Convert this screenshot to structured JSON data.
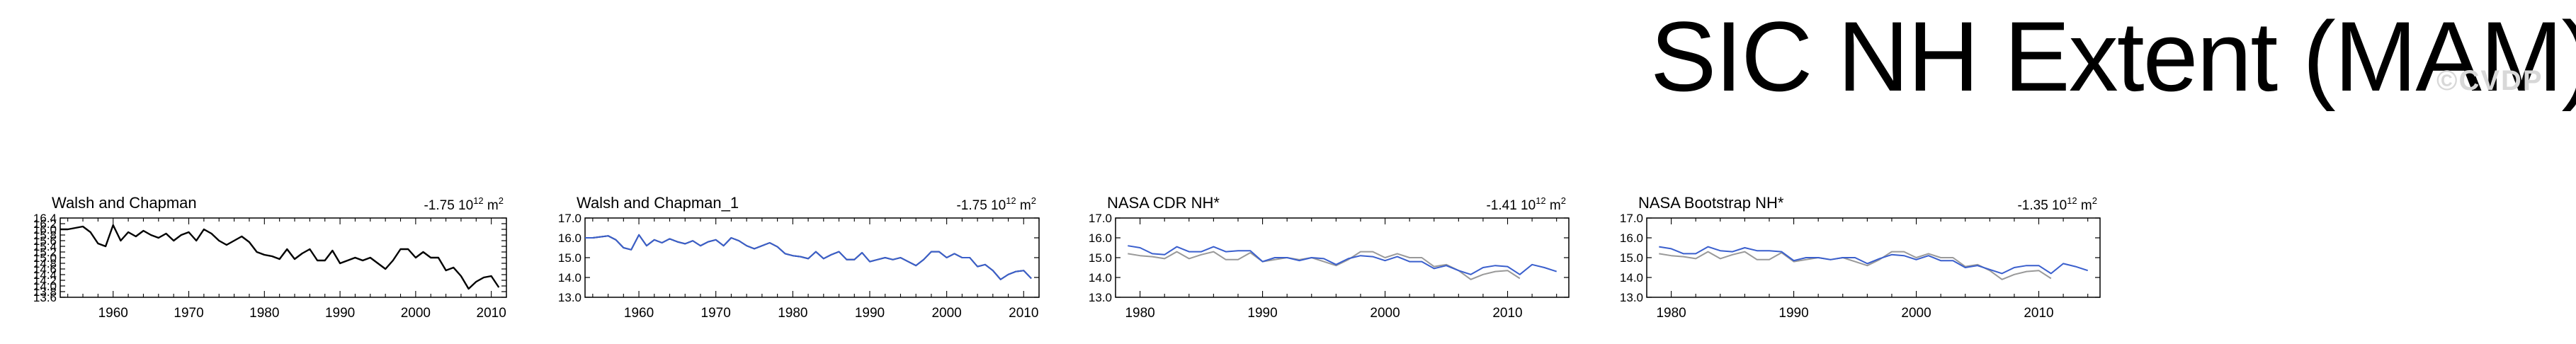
{
  "title": "SIC NH Extent (MAM)",
  "watermark": "©CVDP",
  "chart_data": [
    {
      "type": "line",
      "title": "Walsh and Chapman",
      "trend_value": "-1.75",
      "trend_exp": "12",
      "trend_unit": "m",
      "trend_unit_exp": "2",
      "xlim": [
        1953,
        2012
      ],
      "ylim": [
        13.6,
        16.4
      ],
      "xticks": [
        1960,
        1970,
        1980,
        1990,
        2000,
        2010
      ],
      "yticks": [
        "13.6",
        "13.8",
        "14.0",
        "14.2",
        "14.4",
        "14.6",
        "14.8",
        "15.0",
        "15.2",
        "15.4",
        "15.6",
        "15.8",
        "16.0",
        "16.2",
        "16.4"
      ],
      "series": [
        {
          "color": "#000000",
          "x": [
            1953,
            1954,
            1955,
            1956,
            1957,
            1958,
            1959,
            1960,
            1961,
            1962,
            1963,
            1964,
            1965,
            1966,
            1967,
            1968,
            1969,
            1970,
            1971,
            1972,
            1973,
            1974,
            1975,
            1976,
            1977,
            1978,
            1979,
            1980,
            1981,
            1982,
            1983,
            1984,
            1985,
            1986,
            1987,
            1988,
            1989,
            1990,
            1991,
            1992,
            1993,
            1994,
            1995,
            1996,
            1997,
            1998,
            1999,
            2000,
            2001,
            2002,
            2003,
            2004,
            2005,
            2006,
            2007,
            2008,
            2009,
            2010,
            2011
          ],
          "values": [
            16.0,
            16.0,
            16.05,
            16.1,
            15.9,
            15.5,
            15.4,
            16.15,
            15.6,
            15.9,
            15.75,
            15.95,
            15.8,
            15.7,
            15.85,
            15.6,
            15.8,
            15.9,
            15.6,
            16.0,
            15.85,
            15.6,
            15.45,
            15.6,
            15.75,
            15.55,
            15.2,
            15.1,
            15.05,
            14.95,
            15.3,
            14.95,
            15.15,
            15.3,
            14.9,
            14.9,
            15.25,
            14.8,
            14.9,
            15.0,
            14.9,
            15.0,
            14.8,
            14.6,
            14.9,
            15.3,
            15.3,
            15.0,
            15.2,
            15.0,
            15.0,
            14.55,
            14.65,
            14.35,
            13.9,
            14.15,
            14.3,
            14.35,
            13.95
          ]
        }
      ]
    },
    {
      "type": "line",
      "title": "Walsh and Chapman_1",
      "trend_value": "-1.75",
      "trend_exp": "12",
      "trend_unit": "m",
      "trend_unit_exp": "2",
      "xlim": [
        1953,
        2012
      ],
      "ylim": [
        13.0,
        17.0
      ],
      "xticks": [
        1960,
        1970,
        1980,
        1990,
        2000,
        2010
      ],
      "yticks": [
        "13.0",
        "14.0",
        "15.0",
        "16.0",
        "17.0"
      ],
      "series": [
        {
          "color": "#000000",
          "x": [
            1953,
            1954,
            1955,
            1956,
            1957,
            1958,
            1959,
            1960,
            1961,
            1962,
            1963,
            1964,
            1965,
            1966,
            1967,
            1968,
            1969,
            1970,
            1971,
            1972,
            1973,
            1974,
            1975,
            1976,
            1977,
            1978,
            1979,
            1980,
            1981,
            1982,
            1983,
            1984,
            1985,
            1986,
            1987,
            1988,
            1989,
            1990,
            1991,
            1992,
            1993,
            1994,
            1995,
            1996,
            1997,
            1998,
            1999,
            2000,
            2001,
            2002,
            2003,
            2004,
            2005,
            2006,
            2007,
            2008,
            2009,
            2010,
            2011
          ],
          "values": [
            16.0,
            16.0,
            16.05,
            16.1,
            15.9,
            15.5,
            15.4,
            16.15,
            15.6,
            15.9,
            15.75,
            15.95,
            15.8,
            15.7,
            15.85,
            15.6,
            15.8,
            15.9,
            15.6,
            16.0,
            15.85,
            15.6,
            15.45,
            15.6,
            15.75,
            15.55,
            15.2,
            15.1,
            15.05,
            14.95,
            15.3,
            14.95,
            15.15,
            15.3,
            14.9,
            14.9,
            15.25,
            14.8,
            14.9,
            15.0,
            14.9,
            15.0,
            14.8,
            14.6,
            14.9,
            15.3,
            15.3,
            15.0,
            15.2,
            15.0,
            15.0,
            14.55,
            14.65,
            14.35,
            13.9,
            14.15,
            14.3,
            14.35,
            13.95
          ]
        },
        {
          "color": "#3a5fcd",
          "x": [
            1953,
            1954,
            1955,
            1956,
            1957,
            1958,
            1959,
            1960,
            1961,
            1962,
            1963,
            1964,
            1965,
            1966,
            1967,
            1968,
            1969,
            1970,
            1971,
            1972,
            1973,
            1974,
            1975,
            1976,
            1977,
            1978,
            1979,
            1980,
            1981,
            1982,
            1983,
            1984,
            1985,
            1986,
            1987,
            1988,
            1989,
            1990,
            1991,
            1992,
            1993,
            1994,
            1995,
            1996,
            1997,
            1998,
            1999,
            2000,
            2001,
            2002,
            2003,
            2004,
            2005,
            2006,
            2007,
            2008,
            2009,
            2010,
            2011
          ],
          "values": [
            16.0,
            16.0,
            16.05,
            16.1,
            15.9,
            15.5,
            15.4,
            16.15,
            15.6,
            15.9,
            15.75,
            15.95,
            15.8,
            15.7,
            15.85,
            15.6,
            15.8,
            15.9,
            15.6,
            16.0,
            15.85,
            15.6,
            15.45,
            15.6,
            15.75,
            15.55,
            15.2,
            15.1,
            15.05,
            14.95,
            15.3,
            14.95,
            15.15,
            15.3,
            14.9,
            14.9,
            15.25,
            14.8,
            14.9,
            15.0,
            14.9,
            15.0,
            14.8,
            14.6,
            14.9,
            15.3,
            15.3,
            15.0,
            15.2,
            15.0,
            15.0,
            14.55,
            14.65,
            14.35,
            13.9,
            14.15,
            14.3,
            14.35,
            13.95
          ]
        }
      ]
    },
    {
      "type": "line",
      "title": "NASA CDR NH*",
      "trend_value": "-1.41",
      "trend_exp": "12",
      "trend_unit": "m",
      "trend_unit_exp": "2",
      "xlim": [
        1978,
        2015
      ],
      "ylim": [
        13.0,
        17.0
      ],
      "xticks": [
        1980,
        1990,
        2000,
        2010
      ],
      "yticks": [
        "13.0",
        "14.0",
        "15.0",
        "16.0",
        "17.0"
      ],
      "series": [
        {
          "color": "#999999",
          "x": [
            1979,
            1980,
            1981,
            1982,
            1983,
            1984,
            1985,
            1986,
            1987,
            1988,
            1989,
            1990,
            1991,
            1992,
            1993,
            1994,
            1995,
            1996,
            1997,
            1998,
            1999,
            2000,
            2001,
            2002,
            2003,
            2004,
            2005,
            2006,
            2007,
            2008,
            2009,
            2010,
            2011
          ],
          "values": [
            15.2,
            15.1,
            15.05,
            14.95,
            15.3,
            14.95,
            15.15,
            15.3,
            14.9,
            14.9,
            15.25,
            14.8,
            14.9,
            15.0,
            14.9,
            15.0,
            14.8,
            14.6,
            14.9,
            15.3,
            15.3,
            15.0,
            15.2,
            15.0,
            15.0,
            14.55,
            14.65,
            14.35,
            13.9,
            14.15,
            14.3,
            14.35,
            13.95
          ]
        },
        {
          "color": "#3a5fcd",
          "x": [
            1979,
            1980,
            1981,
            1982,
            1983,
            1984,
            1985,
            1986,
            1987,
            1988,
            1989,
            1990,
            1991,
            1992,
            1993,
            1994,
            1995,
            1996,
            1997,
            1998,
            1999,
            2000,
            2001,
            2002,
            2003,
            2004,
            2005,
            2006,
            2007,
            2008,
            2009,
            2010,
            2011,
            2012,
            2013,
            2014
          ],
          "values": [
            15.6,
            15.5,
            15.2,
            15.15,
            15.55,
            15.3,
            15.3,
            15.55,
            15.3,
            15.35,
            15.35,
            14.8,
            15.0,
            15.0,
            14.85,
            15.0,
            14.95,
            14.65,
            14.95,
            15.1,
            15.05,
            14.85,
            15.05,
            14.8,
            14.8,
            14.45,
            14.6,
            14.35,
            14.15,
            14.5,
            14.6,
            14.55,
            14.15,
            14.65,
            14.5,
            14.3
          ]
        }
      ]
    },
    {
      "type": "line",
      "title": "NASA Bootstrap NH*",
      "trend_value": "-1.35",
      "trend_exp": "12",
      "trend_unit": "m",
      "trend_unit_exp": "2",
      "xlim": [
        1978,
        2015
      ],
      "ylim": [
        13.0,
        17.0
      ],
      "xticks": [
        1980,
        1990,
        2000,
        2010
      ],
      "yticks": [
        "13.0",
        "14.0",
        "15.0",
        "16.0",
        "17.0"
      ],
      "series": [
        {
          "color": "#999999",
          "x": [
            1979,
            1980,
            1981,
            1982,
            1983,
            1984,
            1985,
            1986,
            1987,
            1988,
            1989,
            1990,
            1991,
            1992,
            1993,
            1994,
            1995,
            1996,
            1997,
            1998,
            1999,
            2000,
            2001,
            2002,
            2003,
            2004,
            2005,
            2006,
            2007,
            2008,
            2009,
            2010,
            2011
          ],
          "values": [
            15.2,
            15.1,
            15.05,
            14.95,
            15.3,
            14.95,
            15.15,
            15.3,
            14.9,
            14.9,
            15.25,
            14.8,
            14.9,
            15.0,
            14.9,
            15.0,
            14.8,
            14.6,
            14.9,
            15.3,
            15.3,
            15.0,
            15.2,
            15.0,
            15.0,
            14.55,
            14.65,
            14.35,
            13.9,
            14.15,
            14.3,
            14.35,
            13.95
          ]
        },
        {
          "color": "#3a5fcd",
          "x": [
            1979,
            1980,
            1981,
            1982,
            1983,
            1984,
            1985,
            1986,
            1987,
            1988,
            1989,
            1990,
            1991,
            1992,
            1993,
            1994,
            1995,
            1996,
            1997,
            1998,
            1999,
            2000,
            2001,
            2002,
            2003,
            2004,
            2005,
            2006,
            2007,
            2008,
            2009,
            2010,
            2011,
            2012,
            2013,
            2014
          ],
          "values": [
            15.55,
            15.45,
            15.2,
            15.2,
            15.55,
            15.35,
            15.3,
            15.5,
            15.35,
            15.35,
            15.3,
            14.85,
            15.0,
            15.0,
            14.9,
            15.0,
            15.0,
            14.7,
            14.95,
            15.15,
            15.1,
            14.9,
            15.1,
            14.85,
            14.85,
            14.5,
            14.6,
            14.4,
            14.2,
            14.5,
            14.6,
            14.6,
            14.2,
            14.7,
            14.55,
            14.35
          ]
        }
      ]
    }
  ]
}
